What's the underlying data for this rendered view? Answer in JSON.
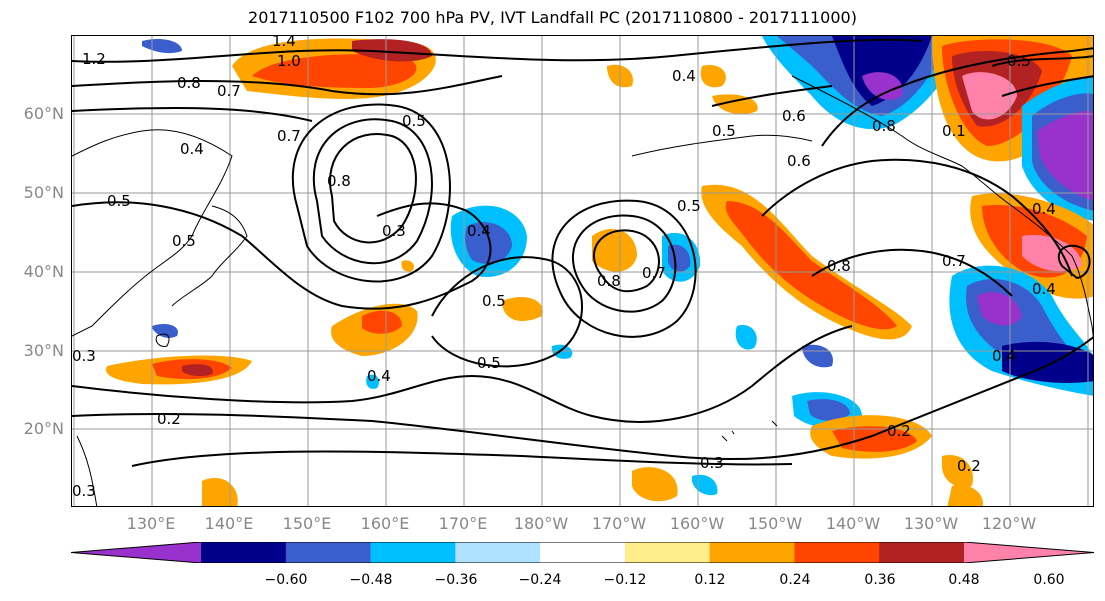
{
  "title": "2017110500 F102 700 hPa PV, IVT Landfall PC (2017110800 - 2017111000)",
  "lat_labels": [
    "60°N",
    "50°N",
    "40°N",
    "30°N",
    "20°N"
  ],
  "lon_labels": [
    "130°E",
    "140°E",
    "150°E",
    "160°E",
    "170°E",
    "180°W",
    "170°W",
    "160°W",
    "150°W",
    "140°W",
    "130°W",
    "120°W"
  ],
  "colorbar": {
    "ticks": [
      "−0.60",
      "−0.48",
      "−0.36",
      "−0.24",
      "−0.12",
      "0.12",
      "0.24",
      "0.36",
      "0.48",
      "0.60"
    ],
    "colors": [
      "#9932CC",
      "#00008B",
      "#3A5FCD",
      "#00BFFF",
      "#B0E2FF",
      "#FFFFFF",
      "#FFEC8B",
      "#FFA500",
      "#FF4500",
      "#B22222",
      "#FF82AB"
    ]
  },
  "contour_labels": [
    "1.2",
    "1.4",
    "1.0",
    "0.8",
    "0.7",
    "0.7",
    "0.4",
    "0.5",
    "0.5",
    "0.8",
    "0.3",
    "0.4",
    "0.5",
    "0.8",
    "0.7",
    "0.5",
    "0.6",
    "0.5",
    "0.4",
    "0.6",
    "0.8",
    "0.7",
    "0.8",
    "0.4",
    "0.4",
    "0.5",
    "0.4",
    "0.3",
    "0.2",
    "0.3",
    "0.2",
    "0.5",
    "0.1",
    "0.4",
    "0.2",
    "0.3",
    "0.5"
  ]
}
